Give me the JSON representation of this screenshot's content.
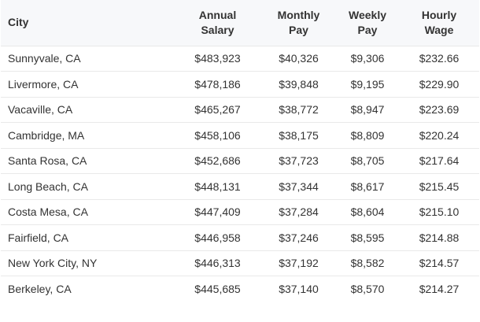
{
  "table": {
    "headers": {
      "city": "City",
      "annual_line1": "Annual",
      "annual_line2": "Salary",
      "monthly_line1": "Monthly",
      "monthly_line2": "Pay",
      "weekly_line1": "Weekly",
      "weekly_line2": "Pay",
      "hourly_line1": "Hourly",
      "hourly_line2": "Wage"
    },
    "rows": [
      {
        "city": "Sunnyvale, CA",
        "annual": "$483,923",
        "monthly": "$40,326",
        "weekly": "$9,306",
        "hourly": "$232.66"
      },
      {
        "city": "Livermore, CA",
        "annual": "$478,186",
        "monthly": "$39,848",
        "weekly": "$9,195",
        "hourly": "$229.90"
      },
      {
        "city": "Vacaville, CA",
        "annual": "$465,267",
        "monthly": "$38,772",
        "weekly": "$8,947",
        "hourly": "$223.69"
      },
      {
        "city": "Cambridge, MA",
        "annual": "$458,106",
        "monthly": "$38,175",
        "weekly": "$8,809",
        "hourly": "$220.24"
      },
      {
        "city": "Santa Rosa, CA",
        "annual": "$452,686",
        "monthly": "$37,723",
        "weekly": "$8,705",
        "hourly": "$217.64"
      },
      {
        "city": "Long Beach, CA",
        "annual": "$448,131",
        "monthly": "$37,344",
        "weekly": "$8,617",
        "hourly": "$215.45"
      },
      {
        "city": "Costa Mesa, CA",
        "annual": "$447,409",
        "monthly": "$37,284",
        "weekly": "$8,604",
        "hourly": "$215.10"
      },
      {
        "city": "Fairfield, CA",
        "annual": "$446,958",
        "monthly": "$37,246",
        "weekly": "$8,595",
        "hourly": "$214.88"
      },
      {
        "city": "New York City, NY",
        "annual": "$446,313",
        "monthly": "$37,192",
        "weekly": "$8,582",
        "hourly": "$214.57"
      },
      {
        "city": "Berkeley, CA",
        "annual": "$445,685",
        "monthly": "$37,140",
        "weekly": "$8,570",
        "hourly": "$214.27"
      }
    ]
  },
  "colors": {
    "header_background": "#f7f8fa",
    "row_border": "#e9e9e9",
    "text": "#333333"
  }
}
